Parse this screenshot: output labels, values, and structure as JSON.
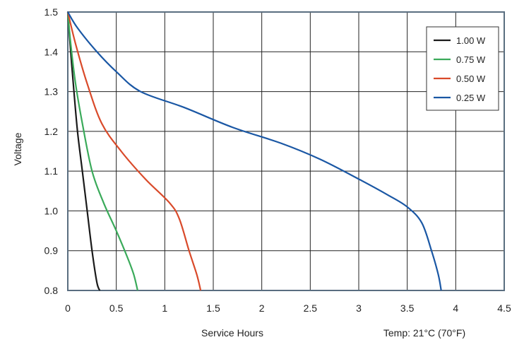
{
  "chart_data": {
    "type": "line",
    "title": "",
    "xlabel": "Service Hours",
    "ylabel": "Voltage",
    "annotation": "Temp: 21°C (70°F)",
    "xlim": [
      0,
      4.5
    ],
    "ylim": [
      0.8,
      1.5
    ],
    "x_ticks": [
      "0",
      "0.5",
      "1",
      "1.5",
      "2",
      "2.5",
      "3",
      "3.5",
      "4",
      "4.5"
    ],
    "y_ticks": [
      "0.8",
      "0.9",
      "1.0",
      "1.1",
      "1.2",
      "1.3",
      "1.4",
      "1.5"
    ],
    "grid": true,
    "legend_position": "top-right",
    "series": [
      {
        "name": "1.00 W",
        "color": "#1a1a1a",
        "points": [
          [
            0,
            1.5
          ],
          [
            0.03,
            1.4
          ],
          [
            0.06,
            1.31
          ],
          [
            0.1,
            1.2
          ],
          [
            0.15,
            1.1
          ],
          [
            0.2,
            1.0
          ],
          [
            0.25,
            0.9
          ],
          [
            0.3,
            0.82
          ],
          [
            0.33,
            0.8
          ]
        ]
      },
      {
        "name": "0.75 W",
        "color": "#3aaa5a",
        "points": [
          [
            0,
            1.5
          ],
          [
            0.03,
            1.42
          ],
          [
            0.08,
            1.32
          ],
          [
            0.15,
            1.22
          ],
          [
            0.25,
            1.1
          ],
          [
            0.37,
            1.02
          ],
          [
            0.5,
            0.95
          ],
          [
            0.62,
            0.88
          ],
          [
            0.68,
            0.84
          ],
          [
            0.72,
            0.8
          ]
        ]
      },
      {
        "name": "0.50 W",
        "color": "#d94a2a",
        "points": [
          [
            0,
            1.5
          ],
          [
            0.08,
            1.42
          ],
          [
            0.2,
            1.32
          ],
          [
            0.35,
            1.22
          ],
          [
            0.55,
            1.15
          ],
          [
            0.8,
            1.08
          ],
          [
            1.05,
            1.02
          ],
          [
            1.15,
            0.98
          ],
          [
            1.25,
            0.9
          ],
          [
            1.33,
            0.84
          ],
          [
            1.37,
            0.8
          ]
        ]
      },
      {
        "name": "0.25 W",
        "color": "#1a57a4",
        "points": [
          [
            0,
            1.5
          ],
          [
            0.1,
            1.46
          ],
          [
            0.3,
            1.4
          ],
          [
            0.5,
            1.35
          ],
          [
            0.75,
            1.3
          ],
          [
            1.2,
            1.26
          ],
          [
            1.7,
            1.21
          ],
          [
            2.2,
            1.17
          ],
          [
            2.6,
            1.13
          ],
          [
            3.0,
            1.08
          ],
          [
            3.3,
            1.04
          ],
          [
            3.5,
            1.01
          ],
          [
            3.65,
            0.97
          ],
          [
            3.75,
            0.9
          ],
          [
            3.82,
            0.84
          ],
          [
            3.85,
            0.8
          ]
        ]
      }
    ]
  }
}
